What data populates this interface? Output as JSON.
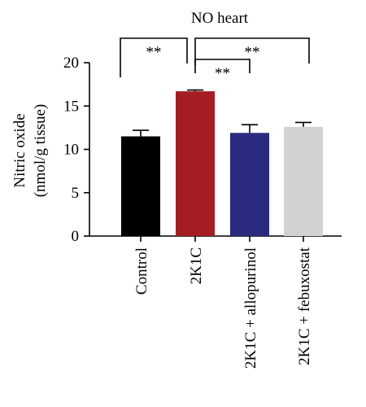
{
  "chart_data": {
    "type": "bar",
    "title": "NO heart",
    "ylabel_line1": "Nitric oxide",
    "ylabel_line2": "(nmol/g tissue)",
    "xlabel": "",
    "ylim": [
      0,
      20
    ],
    "yticks": [
      "0",
      "5",
      "10",
      "15",
      "20"
    ],
    "categories": [
      "Control",
      "2K1C",
      "2K1C + allopurinol",
      "2K1C + febuxostat"
    ],
    "values": [
      11.5,
      16.7,
      11.9,
      12.6
    ],
    "errors": [
      0.7,
      0.15,
      0.95,
      0.5
    ],
    "colors": [
      "#000000",
      "#a51d23",
      "#2a2a7e",
      "#d2d2d2"
    ],
    "grid": false,
    "significance": [
      {
        "from": 0,
        "to": 1,
        "label": "**",
        "level": "top"
      },
      {
        "from": 1,
        "to": 3,
        "label": "**",
        "level": "top"
      },
      {
        "from": 1,
        "to": 2,
        "label": "**",
        "level": "low"
      }
    ]
  }
}
